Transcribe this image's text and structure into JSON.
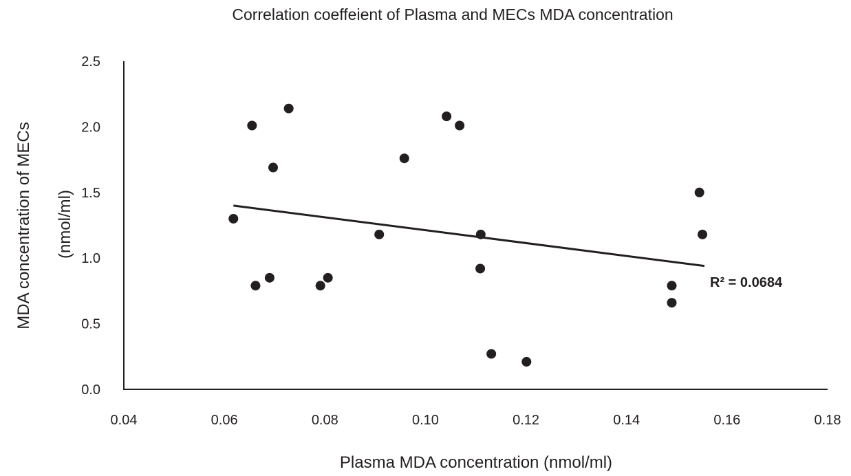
{
  "chart_data": {
    "type": "scatter",
    "title": "Correlation coeffeient of Plasma and MECs MDA concentration",
    "xlabel": "Plasma MDA concentration (nmol/ml)",
    "ylabel_line1": "MDA concentration of MECs",
    "ylabel_line2": "(nmol/ml)",
    "xlim": [
      0.04,
      0.18
    ],
    "ylim": [
      0.0,
      2.5
    ],
    "x_ticks": [
      "0.04",
      "0.06",
      "0.08",
      "0.10",
      "0.12",
      "0.14",
      "0.16",
      "0.18"
    ],
    "y_ticks": [
      "0.0",
      "0.5",
      "1.0",
      "1.5",
      "2.0",
      "2.5"
    ],
    "grid": false,
    "legend": "none",
    "points": [
      {
        "x": 0.0618,
        "y": 1.3
      },
      {
        "x": 0.0655,
        "y": 2.01
      },
      {
        "x": 0.0662,
        "y": 0.79
      },
      {
        "x": 0.069,
        "y": 0.85
      },
      {
        "x": 0.0697,
        "y": 1.69
      },
      {
        "x": 0.0728,
        "y": 2.14
      },
      {
        "x": 0.0791,
        "y": 0.79
      },
      {
        "x": 0.0806,
        "y": 0.85
      },
      {
        "x": 0.0908,
        "y": 1.18
      },
      {
        "x": 0.0958,
        "y": 1.76
      },
      {
        "x": 0.1042,
        "y": 2.08
      },
      {
        "x": 0.1068,
        "y": 2.01
      },
      {
        "x": 0.1109,
        "y": 0.92
      },
      {
        "x": 0.111,
        "y": 1.18
      },
      {
        "x": 0.1131,
        "y": 0.27
      },
      {
        "x": 0.1201,
        "y": 0.21
      },
      {
        "x": 0.149,
        "y": 0.79
      },
      {
        "x": 0.149,
        "y": 0.66
      },
      {
        "x": 0.1545,
        "y": 1.5
      },
      {
        "x": 0.1551,
        "y": 1.18
      }
    ],
    "trendline": {
      "x": [
        0.0618,
        0.1555
      ],
      "y": [
        1.4,
        0.94
      ]
    },
    "annotation": "R² = 0.0684",
    "marker_color": "#231f20",
    "line_color": "#231f20"
  }
}
